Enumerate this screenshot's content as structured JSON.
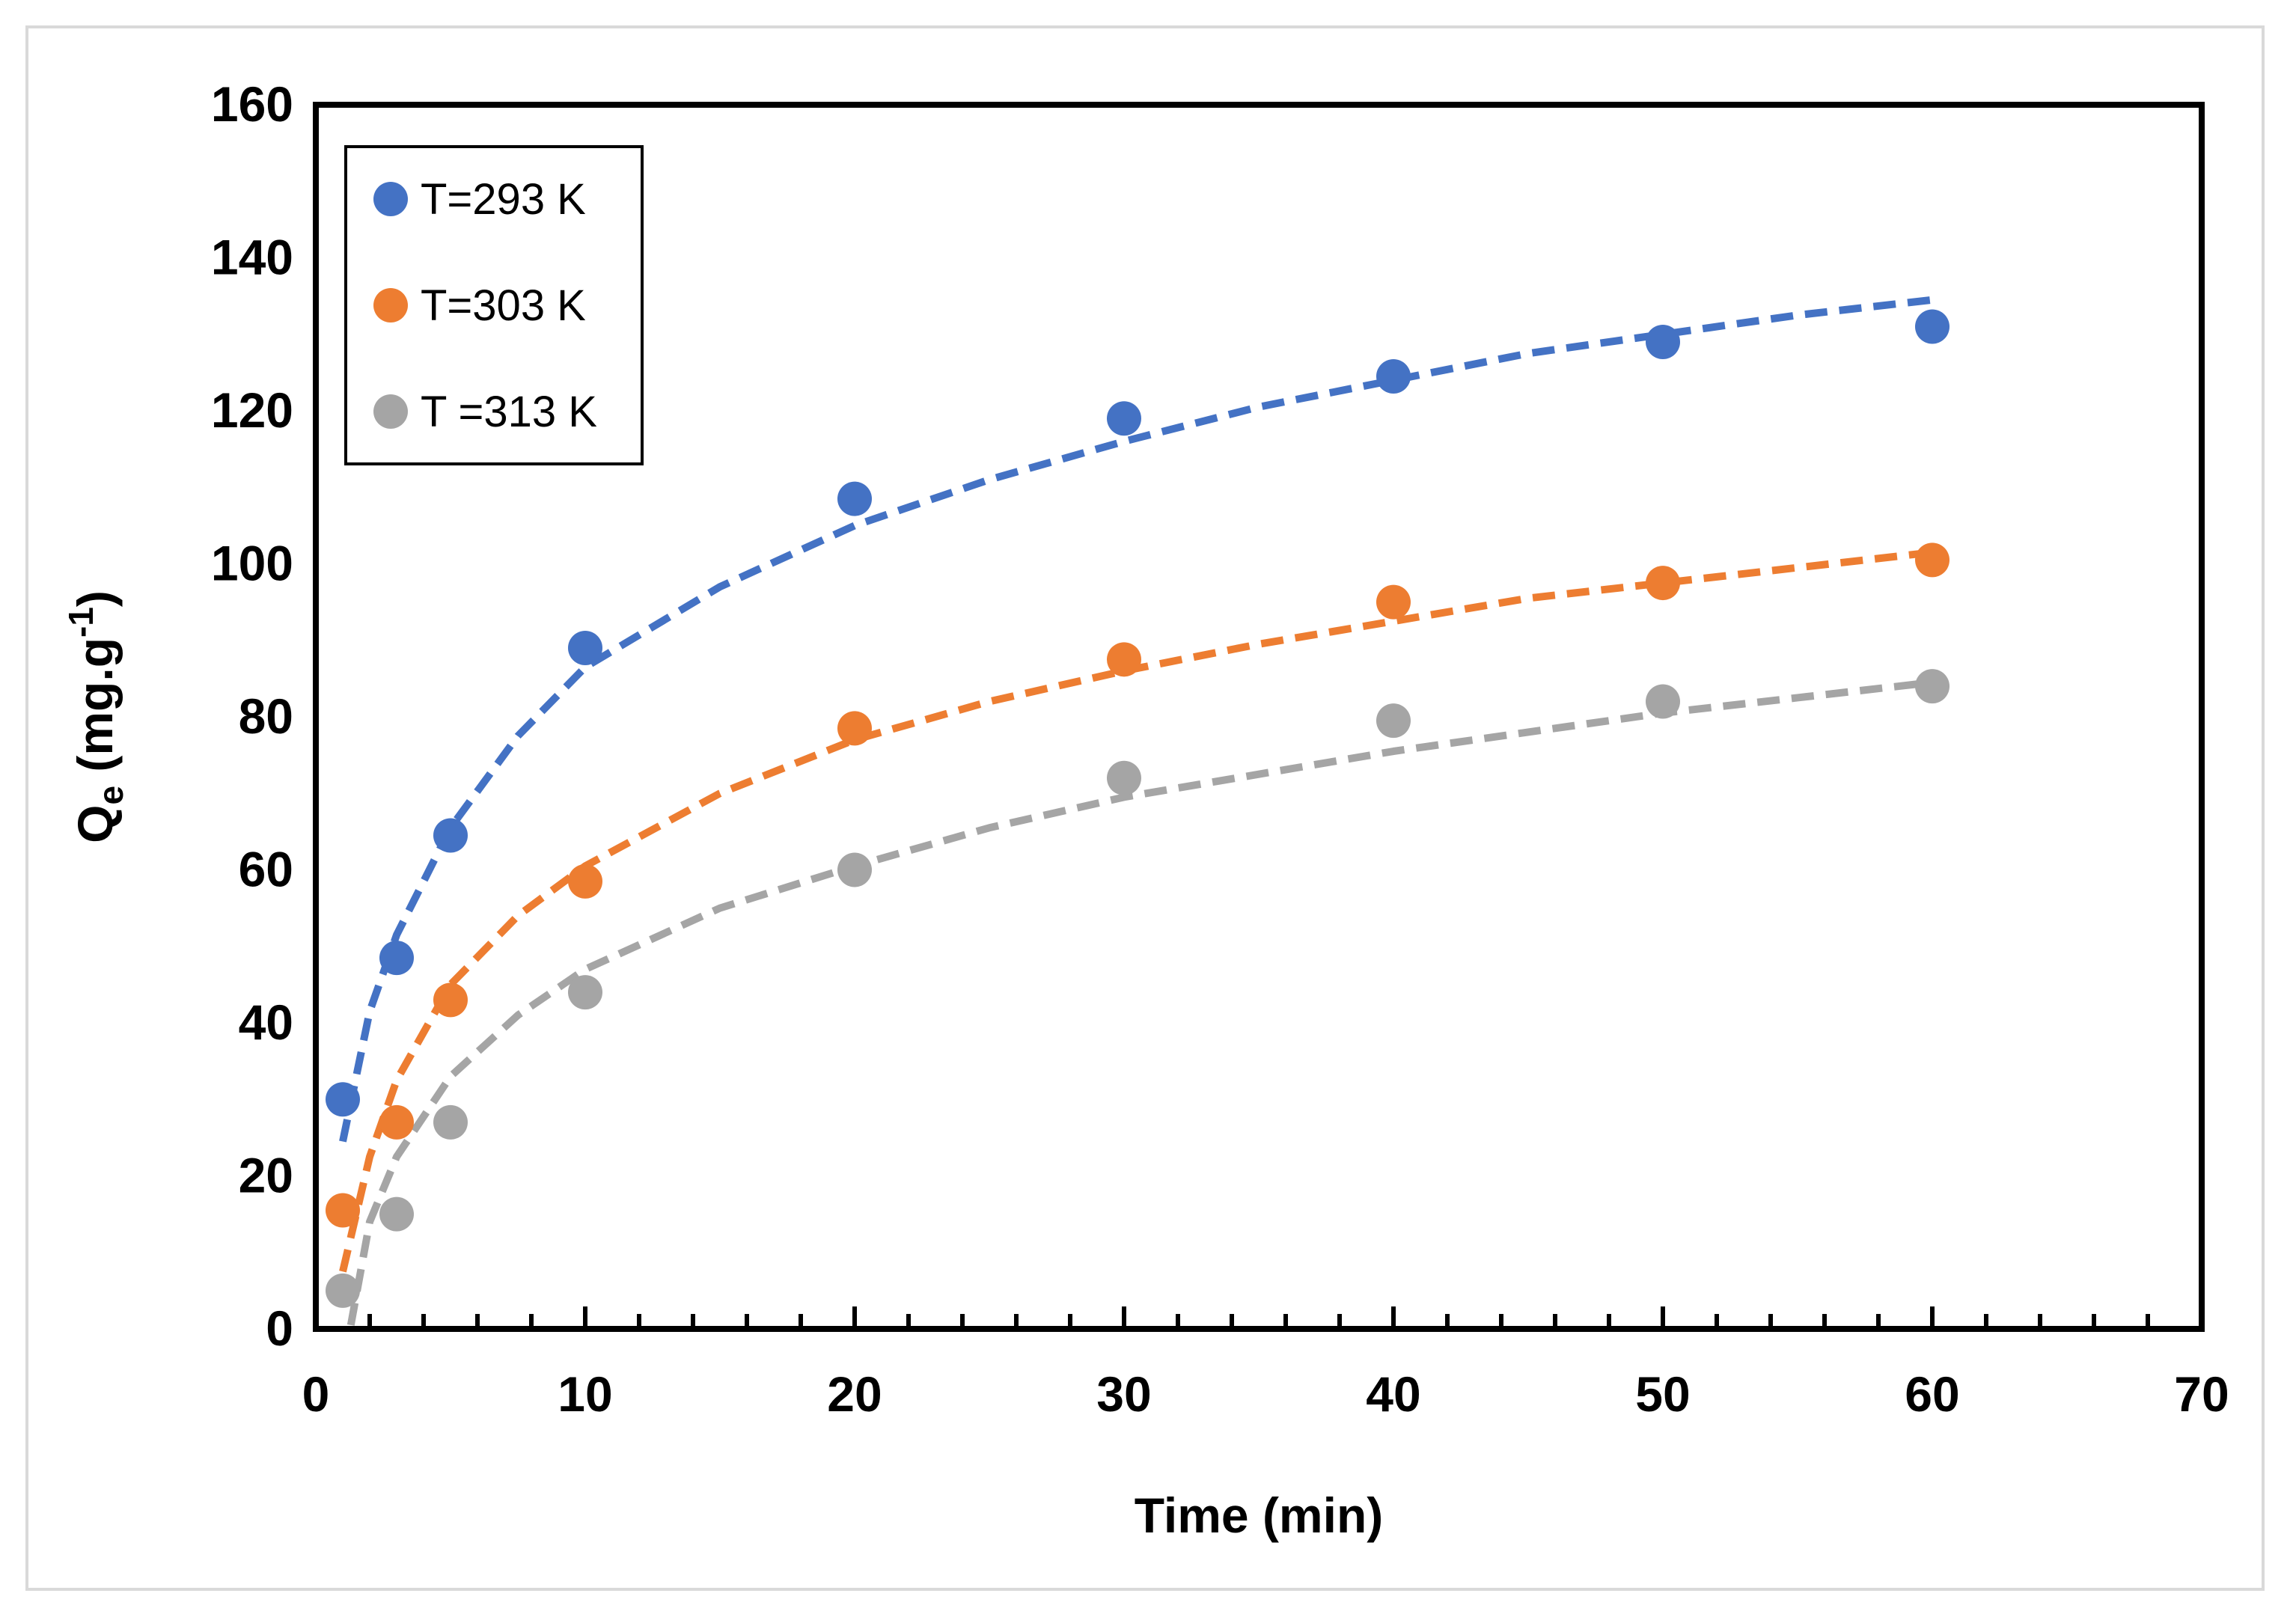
{
  "chart_data": {
    "type": "scatter",
    "title": "",
    "xlabel": "Time (min)",
    "ylabel": {
      "main": "Q",
      "sub": "e",
      "units_prefix": " (mg.g",
      "sup": "-1",
      "units_suffix": ")"
    },
    "xlim": [
      0,
      70
    ],
    "ylim": [
      0,
      160
    ],
    "xticks": [
      0,
      10,
      20,
      30,
      40,
      50,
      60,
      70
    ],
    "yticks": [
      0,
      20,
      40,
      60,
      80,
      100,
      120,
      140,
      160
    ],
    "grid": false,
    "legend_position": "top-left",
    "x": [
      1,
      3,
      5,
      10,
      20,
      30,
      40,
      50,
      60
    ],
    "series": [
      {
        "name": "T=293 K",
        "color": "#4472c4",
        "values": [
          30,
          48.5,
          64.5,
          89,
          108.5,
          119,
          124.5,
          129,
          131
        ],
        "fit": {
          "x": [
            1,
            2,
            3,
            5,
            7.5,
            10,
            15,
            20,
            25,
            30,
            35,
            40,
            45,
            50,
            55,
            60
          ],
          "y": [
            24.5,
            41.5,
            51.5,
            65.5,
            77.5,
            86.5,
            97,
            105,
            111,
            116,
            120.5,
            124,
            127.5,
            130,
            132.5,
            134.5
          ]
        }
      },
      {
        "name": "T=303 K",
        "color": "#ed7d31",
        "values": [
          15.5,
          27,
          43,
          58.5,
          78.5,
          87.5,
          95,
          97.5,
          100.5
        ],
        "fit": {
          "x": [
            1,
            2,
            3,
            5,
            7.5,
            10,
            15,
            20,
            25,
            30,
            35,
            40,
            45,
            50,
            55,
            60
          ],
          "y": [
            7.5,
            22.5,
            32.5,
            45,
            54,
            60.5,
            70,
            77,
            82,
            86,
            89.5,
            92.5,
            95.5,
            97.5,
            99.5,
            101.5
          ]
        }
      },
      {
        "name": "T =313 K",
        "color": "#a5a5a5",
        "values": [
          5,
          15,
          27,
          44,
          60,
          72,
          79.5,
          82,
          84
        ],
        "fit": {
          "x": [
            1.3,
            2,
            3,
            5,
            7.5,
            10,
            15,
            20,
            25,
            30,
            35,
            40,
            45,
            50,
            55,
            60
          ],
          "y": [
            0.5,
            14,
            22.5,
            33,
            41,
            47,
            55,
            60.5,
            65.5,
            69.5,
            72.5,
            75.5,
            78,
            80.5,
            82.5,
            84.5
          ]
        }
      }
    ]
  }
}
